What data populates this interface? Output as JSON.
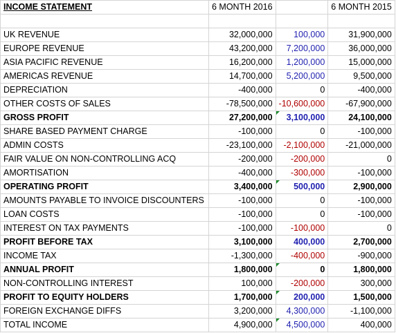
{
  "headers": {
    "title": "INCOME STATEMENT",
    "col_2016": "6 MONTH 2016",
    "col_diff": "",
    "col_2015": "6 MONTH 2015"
  },
  "rows": [
    {
      "label": "UK REVENUE",
      "y2016": "32,000,000",
      "diff": "100,000",
      "diff_color": "blue",
      "y2015": "31,900,000",
      "bold": false
    },
    {
      "label": "EUROPE REVENUE",
      "y2016": "43,200,000",
      "diff": "7,200,000",
      "diff_color": "blue",
      "y2015": "36,000,000",
      "bold": false
    },
    {
      "label": "ASIA PACIFIC REVENUE",
      "y2016": "16,200,000",
      "diff": "1,200,000",
      "diff_color": "blue",
      "y2015": "15,000,000",
      "bold": false
    },
    {
      "label": "AMERICAS REVENUE",
      "y2016": "14,700,000",
      "diff": "5,200,000",
      "diff_color": "blue",
      "y2015": "9,500,000",
      "bold": false
    },
    {
      "label": "DEPRECIATION",
      "y2016": "-400,000",
      "diff": "0",
      "diff_color": "black",
      "y2015": "-400,000",
      "bold": false
    },
    {
      "label": "OTHER COSTS OF SALES",
      "y2016": "-78,500,000",
      "diff": "-10,600,000",
      "diff_color": "red",
      "y2015": "-67,900,000",
      "bold": false
    },
    {
      "label": "GROSS PROFIT",
      "y2016": "27,200,000",
      "diff": "3,100,000",
      "diff_color": "blue",
      "y2015": "24,100,000",
      "bold": true,
      "marker": true
    },
    {
      "label": "SHARE BASED PAYMENT CHARGE",
      "y2016": "-100,000",
      "diff": "0",
      "diff_color": "black",
      "y2015": "-100,000",
      "bold": false
    },
    {
      "label": "ADMIN COSTS",
      "y2016": "-23,100,000",
      "diff": "-2,100,000",
      "diff_color": "red",
      "y2015": "-21,000,000",
      "bold": false
    },
    {
      "label": "FAIR VALUE ON NON-CONTROLLING ACQ",
      "y2016": "-200,000",
      "diff": "-200,000",
      "diff_color": "red",
      "y2015": "0",
      "bold": false
    },
    {
      "label": "AMORTISATION",
      "y2016": "-400,000",
      "diff": "-300,000",
      "diff_color": "red",
      "y2015": "-100,000",
      "bold": false
    },
    {
      "label": "OPERATING PROFIT",
      "y2016": "3,400,000",
      "diff": "500,000",
      "diff_color": "blue",
      "y2015": "2,900,000",
      "bold": true,
      "marker": true
    },
    {
      "label": "AMOUNTS PAYABLE TO INVOICE DISCOUNTERS",
      "y2016": "-100,000",
      "diff": "0",
      "diff_color": "black",
      "y2015": "-100,000",
      "bold": false
    },
    {
      "label": "LOAN COSTS",
      "y2016": "-100,000",
      "diff": "0",
      "diff_color": "black",
      "y2015": "-100,000",
      "bold": false
    },
    {
      "label": "INTEREST ON TAX PAYMENTS",
      "y2016": "-100,000",
      "diff": "-100,000",
      "diff_color": "red",
      "y2015": "0",
      "bold": false
    },
    {
      "label": "PROFIT BEFORE TAX",
      "y2016": "3,100,000",
      "diff": "400,000",
      "diff_color": "blue",
      "y2015": "2,700,000",
      "bold": true
    },
    {
      "label": "INCOME TAX",
      "y2016": "-1,300,000",
      "diff": "-400,000",
      "diff_color": "red",
      "y2015": "-900,000",
      "bold": false
    },
    {
      "label": "ANNUAL PROFIT",
      "y2016": "1,800,000",
      "diff": "0",
      "diff_color": "black",
      "y2015": "1,800,000",
      "bold": true,
      "marker": true
    },
    {
      "label": "NON-CONTROLLING INTEREST",
      "y2016": "100,000",
      "diff": "-200,000",
      "diff_color": "red",
      "y2015": "300,000",
      "bold": false
    },
    {
      "label": "PROFIT TO EQUITY HOLDERS",
      "y2016": "1,700,000",
      "diff": "200,000",
      "diff_color": "blue",
      "y2015": "1,500,000",
      "bold": true,
      "marker": true
    },
    {
      "label": "FOREIGN EXCHANGE DIFFS",
      "y2016": "3,200,000",
      "diff": "4,300,000",
      "diff_color": "blue",
      "y2015": "-1,100,000",
      "bold": false
    },
    {
      "label": "TOTAL INCOME",
      "y2016": "4,900,000",
      "diff": "4,500,000",
      "diff_color": "blue",
      "y2015": "400,000",
      "bold": false,
      "marker": true
    }
  ]
}
